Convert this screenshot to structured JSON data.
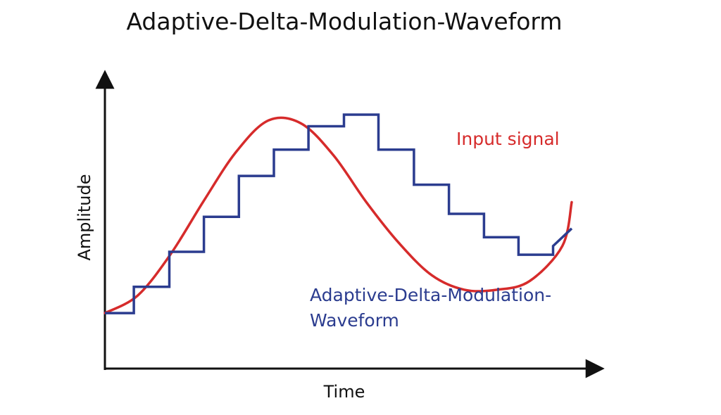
{
  "chart_data": {
    "type": "line",
    "title": "Adaptive-Delta-Modulation-Waveform",
    "xlabel": "Time",
    "ylabel": "Amplitude",
    "xlim": [
      0,
      10
    ],
    "ylim": [
      0,
      10
    ],
    "ticks": false,
    "grid": false,
    "legend": "inline-labels",
    "series": [
      {
        "name": "Input signal",
        "color": "#d62b2b",
        "x": [
          0,
          0.7,
          1.4,
          2.1,
          2.8,
          3.5,
          4.2,
          4.9,
          5.6,
          6.3,
          7.0,
          7.7,
          8.4,
          9.1,
          9.8,
          10
        ],
        "y": [
          1.9,
          2.5,
          3.9,
          5.7,
          7.4,
          8.5,
          8.4,
          7.3,
          5.7,
          4.3,
          3.2,
          2.7,
          2.7,
          3.0,
          4.2,
          5.7
        ]
      },
      {
        "name": "Adaptive-Delta-Modulation-Waveform",
        "label_lines": [
          "Adaptive-Delta-Modulation-",
          "Waveform"
        ],
        "color": "#2b3c8f",
        "step": true,
        "x": [
          0,
          0.62,
          1.38,
          2.12,
          2.87,
          3.62,
          4.36,
          5.12,
          5.86,
          6.62,
          7.37,
          8.12,
          8.86,
          9.6,
          10
        ],
        "y": [
          1.9,
          2.8,
          4.0,
          5.2,
          6.6,
          7.5,
          8.3,
          8.7,
          7.5,
          6.3,
          5.3,
          4.5,
          3.9,
          4.2,
          4.8
        ]
      }
    ]
  }
}
